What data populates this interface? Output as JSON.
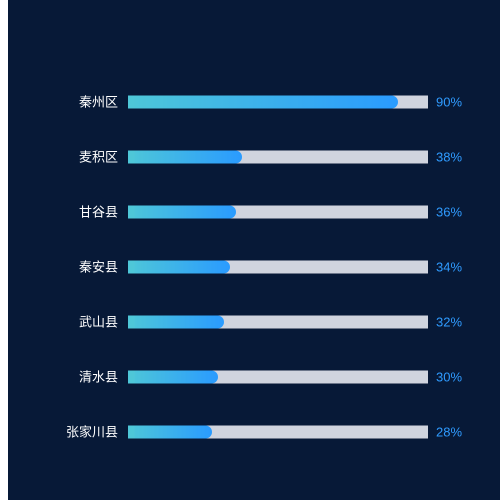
{
  "chart_data": {
    "type": "bar",
    "orientation": "horizontal",
    "categories": [
      "秦州区",
      "麦积区",
      "甘谷县",
      "秦安县",
      "武山县",
      "清水县",
      "张家川县"
    ],
    "values": [
      90,
      38,
      36,
      34,
      32,
      30,
      28
    ],
    "value_labels": [
      "90%",
      "38%",
      "36%",
      "34%",
      "32%",
      "30%",
      "28%"
    ],
    "xlim": [
      0,
      100
    ],
    "title": "",
    "xlabel": "",
    "ylabel": "",
    "grid": false
  },
  "colors": {
    "background": "#071937",
    "track": "#d0d4de",
    "bar_gradient_start": "#4ec7d8",
    "bar_gradient_end": "#2a9bff",
    "category_text": "#ffffff",
    "value_text": "#2f9bff"
  }
}
